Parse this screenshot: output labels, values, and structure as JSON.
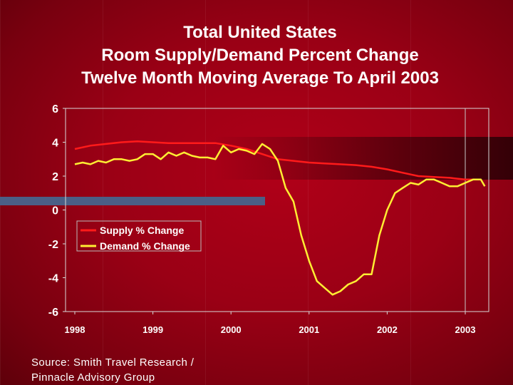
{
  "slide": {
    "title_lines": [
      "Total United States",
      "Room Supply/Demand Percent Change",
      "Twelve Month Moving Average To April 2003"
    ],
    "source_lines": [
      "Source: Smith Travel Research /",
      "Pinnacle Advisory Group"
    ]
  },
  "colors": {
    "supply": "#ff1a1a",
    "demand": "#ffee33",
    "axis": "#d8d8d8",
    "text": "#ffffff"
  },
  "chart_data": {
    "type": "line",
    "title": "",
    "xlabel": "",
    "ylabel": "",
    "ylim": [
      -6,
      6
    ],
    "xlim": [
      1998,
      2003.25
    ],
    "yticks": [
      6,
      4,
      2,
      0,
      -2,
      -4,
      -6
    ],
    "xticks": [
      1998,
      1999,
      2000,
      2001,
      2002,
      2003
    ],
    "legend_position": "center-left",
    "grid": false,
    "series": [
      {
        "name": "Supply % Change",
        "color": "#ff1a1a",
        "x": [
          1998.0,
          1998.2,
          1998.4,
          1998.6,
          1998.8,
          1999.0,
          1999.2,
          1999.4,
          1999.6,
          1999.8,
          2000.0,
          2000.2,
          2000.4,
          2000.6,
          2000.8,
          2001.0,
          2001.2,
          2001.4,
          2001.6,
          2001.8,
          2002.0,
          2002.2,
          2002.4,
          2002.6,
          2002.8,
          2003.0,
          2003.15
        ],
        "values": [
          3.6,
          3.8,
          3.9,
          4.0,
          4.05,
          4.0,
          3.95,
          3.95,
          3.95,
          3.95,
          3.8,
          3.6,
          3.3,
          3.0,
          2.9,
          2.8,
          2.75,
          2.7,
          2.65,
          2.55,
          2.4,
          2.2,
          2.0,
          1.95,
          1.9,
          1.8,
          1.8
        ]
      },
      {
        "name": "Demand % Change",
        "color": "#ffee33",
        "x": [
          1998.0,
          1998.1,
          1998.2,
          1998.3,
          1998.4,
          1998.5,
          1998.6,
          1998.7,
          1998.8,
          1998.9,
          1999.0,
          1999.1,
          1999.2,
          1999.3,
          1999.4,
          1999.5,
          1999.6,
          1999.7,
          1999.8,
          1999.9,
          2000.0,
          2000.1,
          2000.2,
          2000.3,
          2000.4,
          2000.5,
          2000.6,
          2000.7,
          2000.8,
          2000.9,
          2001.0,
          2001.1,
          2001.2,
          2001.3,
          2001.4,
          2001.5,
          2001.6,
          2001.7,
          2001.8,
          2001.9,
          2002.0,
          2002.1,
          2002.2,
          2002.3,
          2002.4,
          2002.5,
          2002.6,
          2002.7,
          2002.8,
          2002.9,
          2003.0,
          2003.1,
          2003.2,
          2003.25
        ],
        "values": [
          2.7,
          2.8,
          2.7,
          2.9,
          2.8,
          3.0,
          3.0,
          2.9,
          3.0,
          3.3,
          3.3,
          3.0,
          3.4,
          3.2,
          3.4,
          3.2,
          3.1,
          3.1,
          3.0,
          3.8,
          3.4,
          3.6,
          3.5,
          3.3,
          3.9,
          3.6,
          2.9,
          1.3,
          0.5,
          -1.5,
          -3.0,
          -4.2,
          -4.6,
          -5.0,
          -4.8,
          -4.4,
          -4.2,
          -3.8,
          -3.8,
          -1.5,
          0.0,
          1.0,
          1.3,
          1.6,
          1.5,
          1.8,
          1.8,
          1.6,
          1.4,
          1.4,
          1.6,
          1.8,
          1.8,
          1.4
        ]
      }
    ]
  }
}
